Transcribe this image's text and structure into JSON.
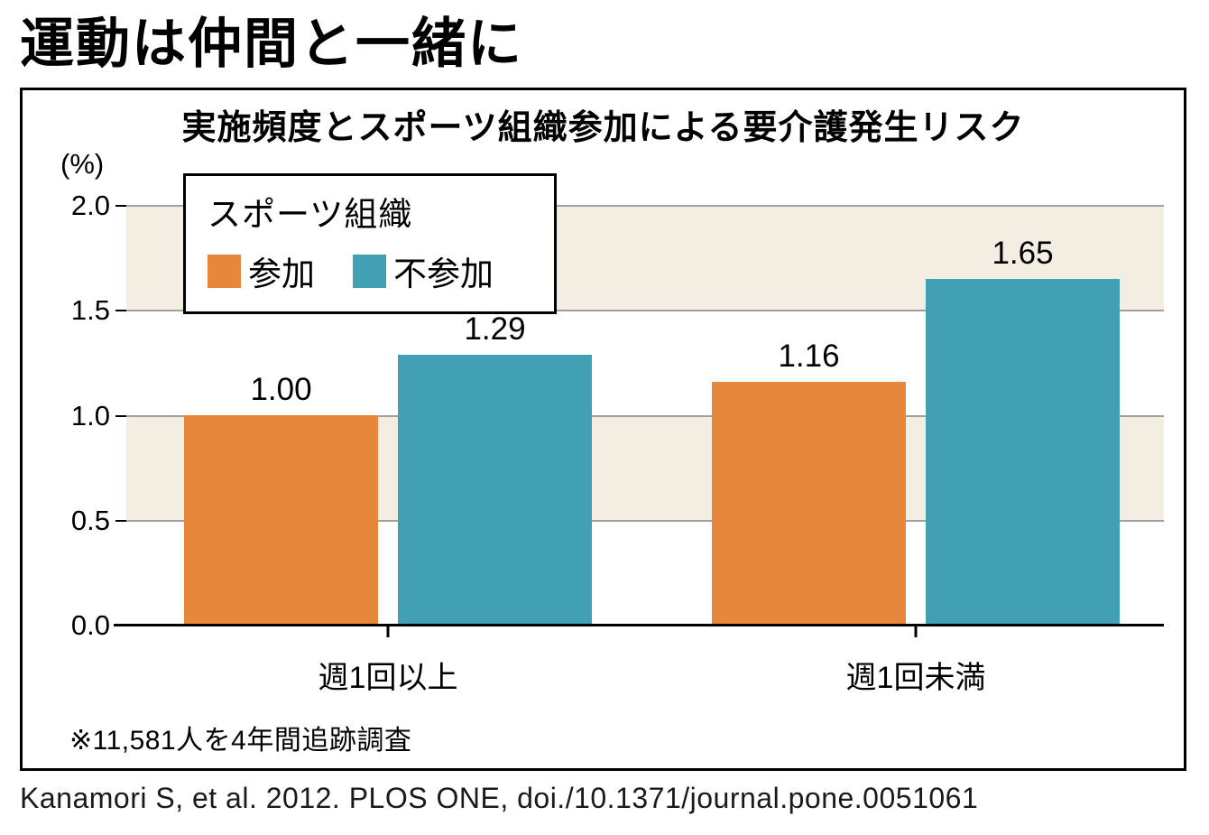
{
  "page_title": "運動は仲間と一緒に",
  "citation": "Kanamori S, et al. 2012. PLOS ONE, doi./10.1371/journal.pone.0051061",
  "chart_data": {
    "type": "bar",
    "title": "実施頻度とスポーツ組織参加による要介護発生リスク",
    "unit_label": "(%)",
    "legend_title": "スポーツ組織",
    "categories": [
      "週1回以上",
      "週1回未満"
    ],
    "series": [
      {
        "name": "参加",
        "color": "#E7873B",
        "values": [
          1.0,
          1.16
        ],
        "value_labels": [
          "1.00",
          "1.16"
        ]
      },
      {
        "name": "不参加",
        "color": "#41A0B4",
        "values": [
          1.29,
          1.65
        ],
        "value_labels": [
          "1.29",
          "1.65"
        ]
      }
    ],
    "ylim": [
      0,
      2.0
    ],
    "yticks": [
      "2.0",
      "1.5",
      "1.0",
      "0.5",
      "0.0"
    ],
    "grid": true,
    "legend_position": "top-left",
    "stripe_colors": [
      "#F3EEE1",
      "#FFFFFF"
    ],
    "footnote": "※11,581人を4年間追跡調査"
  }
}
